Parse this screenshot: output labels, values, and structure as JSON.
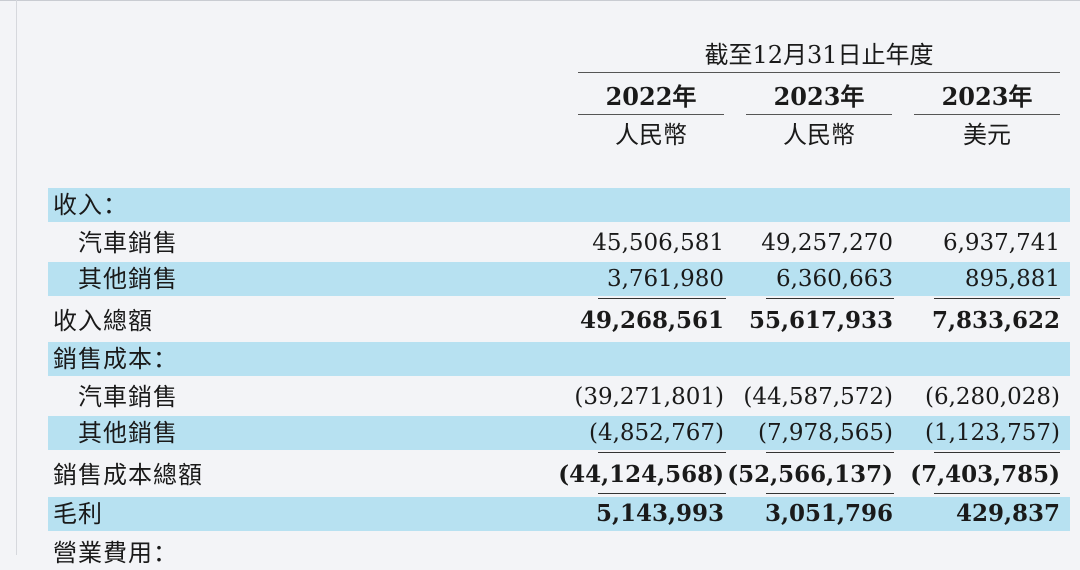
{
  "header": {
    "period": "截至12月31日止年度",
    "columns": [
      {
        "year": "2022年",
        "currency": "人民幣"
      },
      {
        "year": "2023年",
        "currency": "人民幣"
      },
      {
        "year": "2023年",
        "currency": "美元"
      }
    ]
  },
  "rows": [
    {
      "label": "收入：",
      "values": [
        "",
        "",
        ""
      ]
    },
    {
      "label": "汽車銷售",
      "values": [
        "45,506,581",
        "49,257,270",
        "6,937,741"
      ]
    },
    {
      "label": "其他銷售",
      "values": [
        "3,761,980",
        "6,360,663",
        "895,881"
      ]
    },
    {
      "label": "收入總額",
      "values": [
        "49,268,561",
        "55,617,933",
        "7,833,622"
      ]
    },
    {
      "label": "銷售成本：",
      "values": [
        "",
        "",
        ""
      ]
    },
    {
      "label": "汽車銷售",
      "values": [
        "(39,271,801)",
        "(44,587,572)",
        "(6,280,028)"
      ]
    },
    {
      "label": "其他銷售",
      "values": [
        "(4,852,767)",
        "(7,978,565)",
        "(1,123,757)"
      ]
    },
    {
      "label": "銷售成本總額",
      "values": [
        "(44,124,568)",
        "(52,566,137)",
        "(7,403,785)"
      ]
    },
    {
      "label": "毛利",
      "values": [
        "5,143,993",
        "3,051,796",
        "429,837"
      ]
    },
    {
      "label": "營業費用：",
      "values": [
        "",
        "",
        ""
      ]
    }
  ]
}
